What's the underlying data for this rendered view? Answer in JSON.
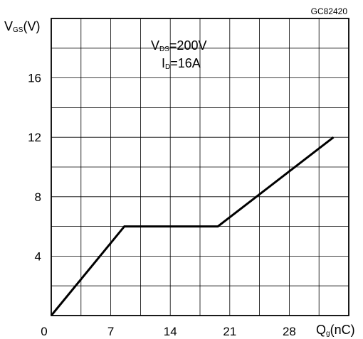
{
  "chart_data": {
    "type": "line",
    "title": "",
    "chart_code": "GC82420",
    "ylabel": {
      "main": "V",
      "sub": "GS",
      "unit": "(V)"
    },
    "xlabel": {
      "main": "Q",
      "sub": "g",
      "unit": "(nC)"
    },
    "xlim": [
      0,
      35
    ],
    "ylim": [
      0,
      20
    ],
    "x_ticks": [
      0,
      7,
      14,
      21,
      28
    ],
    "y_ticks": [
      4,
      8,
      12,
      16
    ],
    "grid": true,
    "annotation": [
      {
        "main": "V",
        "sub": "DS",
        "rest": "=200V"
      },
      {
        "main": "I",
        "sub": "D",
        "rest": "=16A"
      }
    ],
    "series": [
      {
        "x": [
          0,
          8.6,
          19.6,
          33.2
        ],
        "y": [
          0,
          6,
          6,
          12
        ]
      }
    ]
  }
}
